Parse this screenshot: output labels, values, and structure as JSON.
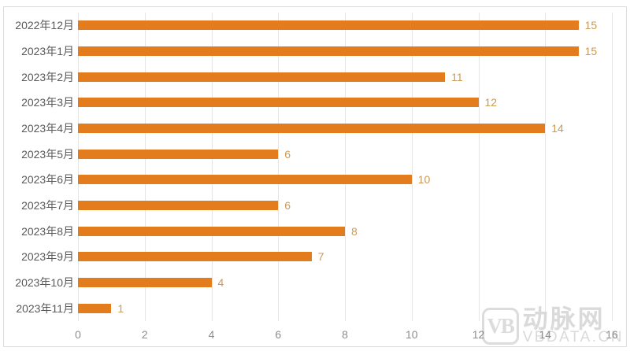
{
  "chart_data": {
    "type": "bar",
    "orientation": "horizontal",
    "title": "",
    "xlabel": "",
    "ylabel": "",
    "categories": [
      "2022年12月",
      "2023年1月",
      "2023年2月",
      "2023年3月",
      "2023年4月",
      "2023年5月",
      "2023年6月",
      "2023年7月",
      "2023年8月",
      "2023年9月",
      "2023年10月",
      "2023年11月"
    ],
    "values": [
      15,
      15,
      11,
      12,
      14,
      6,
      10,
      6,
      8,
      7,
      4,
      1
    ],
    "xlim": [
      0,
      16
    ],
    "x_ticks": [
      0,
      2,
      4,
      6,
      8,
      10,
      12,
      14,
      16
    ],
    "grid": "vertical-only",
    "legend": "none",
    "data_labels": "outside-end",
    "colors": {
      "bar": "#e27c1c",
      "value_label": "#cc9a55",
      "category_label": "#595959",
      "tick_label": "#8c8c8c",
      "gridline": "#e5e5e5",
      "frame_border": "#dcdcdc",
      "background": "#ffffff"
    }
  },
  "watermark": {
    "logo": "VB",
    "brand": "动脉网",
    "domain": "VBDATA.CN"
  }
}
